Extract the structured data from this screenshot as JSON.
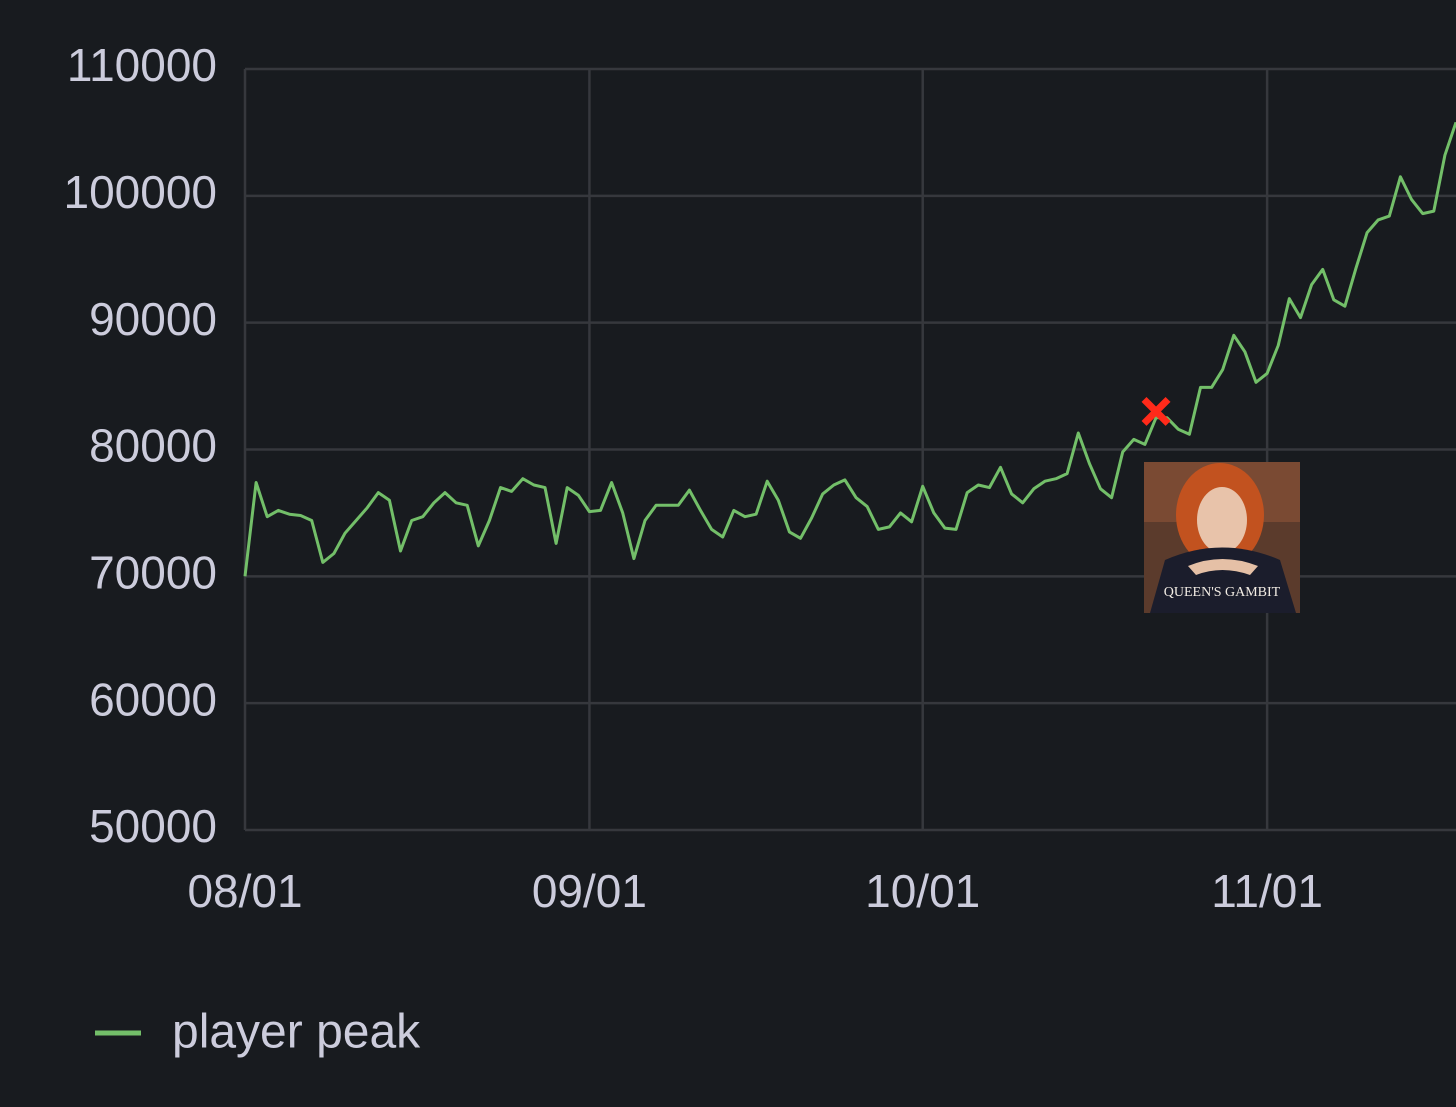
{
  "chart_data": {
    "type": "line",
    "x": [
      "08/01",
      "08/02",
      "08/03",
      "08/04",
      "08/05",
      "08/06",
      "08/07",
      "08/08",
      "08/09",
      "08/10",
      "08/11",
      "08/12",
      "08/13",
      "08/14",
      "08/15",
      "08/16",
      "08/17",
      "08/18",
      "08/19",
      "08/20",
      "08/21",
      "08/22",
      "08/23",
      "08/24",
      "08/25",
      "08/26",
      "08/27",
      "08/28",
      "08/29",
      "08/30",
      "08/31",
      "09/01",
      "09/02",
      "09/03",
      "09/04",
      "09/05",
      "09/06",
      "09/07",
      "09/08",
      "09/09",
      "09/10",
      "09/11",
      "09/12",
      "09/13",
      "09/14",
      "09/15",
      "09/16",
      "09/17",
      "09/18",
      "09/19",
      "09/20",
      "09/21",
      "09/22",
      "09/23",
      "09/24",
      "09/25",
      "09/26",
      "09/27",
      "09/28",
      "09/29",
      "09/30",
      "10/01",
      "10/02",
      "10/03",
      "10/04",
      "10/05",
      "10/06",
      "10/07",
      "10/08",
      "10/09",
      "10/10",
      "10/11",
      "10/12",
      "10/13",
      "10/14",
      "10/15",
      "10/16",
      "10/17",
      "10/18",
      "10/19",
      "10/20",
      "10/21",
      "10/22",
      "10/23",
      "10/24",
      "10/25",
      "10/26",
      "10/27",
      "10/28",
      "10/29",
      "10/30",
      "10/31",
      "11/01",
      "11/02",
      "11/03",
      "11/04",
      "11/05",
      "11/06",
      "11/07",
      "11/08",
      "11/09",
      "11/10",
      "11/11",
      "11/12",
      "11/13",
      "11/14",
      "11/15",
      "11/16",
      "11/17",
      "11/18"
    ],
    "series": [
      {
        "name": "player peak",
        "color": "#73bf69",
        "values": [
          70000,
          77400,
          74700,
          75200,
          74900,
          74800,
          74400,
          71100,
          71800,
          73400,
          74400,
          75400,
          76600,
          76000,
          72000,
          74400,
          74700,
          75800,
          76600,
          75800,
          75600,
          72400,
          74400,
          77000,
          76700,
          77700,
          77200,
          77000,
          72600,
          77000,
          76400,
          75100,
          75200,
          77400,
          75000,
          71400,
          74400,
          75600,
          75600,
          75600,
          76800,
          75200,
          73700,
          73100,
          75200,
          74700,
          74900,
          77500,
          76000,
          73500,
          73000,
          74600,
          76500,
          77200,
          77600,
          76200,
          75500,
          73700,
          73900,
          75000,
          74300,
          77100,
          75000,
          73800,
          73700,
          76600,
          77200,
          77000,
          78600,
          76500,
          75800,
          76900,
          77500,
          77700,
          78100,
          81300,
          78900,
          76900,
          76200,
          79800,
          80800,
          80400,
          82500,
          82500,
          81600,
          81200,
          84900,
          84900,
          86300,
          89000,
          87700,
          85300,
          86000,
          88200,
          91900,
          90400,
          93000,
          94200,
          91800,
          91300,
          94300,
          97100,
          98100,
          98400,
          101500,
          99700,
          98600,
          98800,
          103200,
          105800
        ]
      }
    ],
    "xlim": [
      "08/01",
      "11/18"
    ],
    "xticks": [
      "08/01",
      "09/01",
      "10/01",
      "11/01"
    ],
    "ylim": [
      50000,
      110000
    ],
    "yticks": [
      50000,
      60000,
      70000,
      80000,
      90000,
      100000,
      110000
    ],
    "grid": true,
    "markers": [
      {
        "x": "10/22",
        "y": 83000,
        "color": "#ff2a1a"
      }
    ],
    "image_caption": "QUEEN'S GAMBIT"
  }
}
